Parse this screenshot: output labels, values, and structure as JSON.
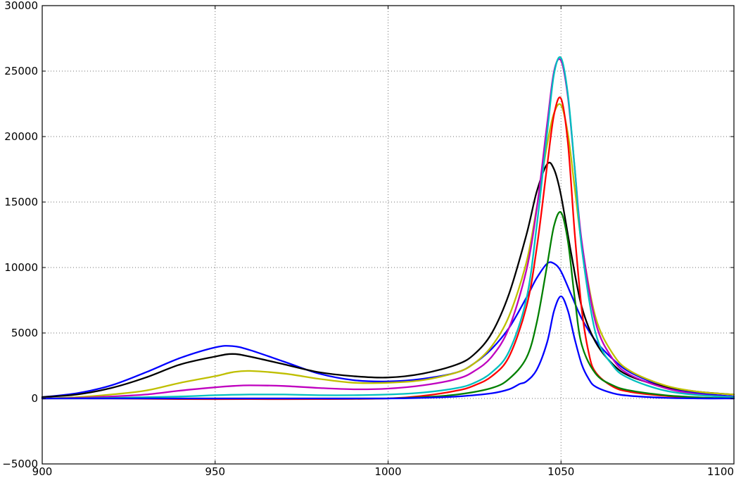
{
  "chart_data": {
    "type": "line",
    "title": "",
    "xlabel": "",
    "ylabel": "",
    "xlim": [
      900,
      1100
    ],
    "ylim": [
      -5000,
      30000
    ],
    "grid": true,
    "legend": "none",
    "x_ticks": [
      "900",
      "950",
      "1000",
      "1050",
      "1100"
    ],
    "y_ticks": [
      "30000",
      "25000",
      "20000",
      "15000",
      "10000",
      "5000",
      "0",
      "−5000"
    ],
    "x_tick_values": [
      900,
      950,
      1000,
      1050,
      1100
    ],
    "y_tick_values": [
      30000,
      25000,
      20000,
      15000,
      10000,
      5000,
      0,
      -5000
    ],
    "series": [
      {
        "color": "#0000ff",
        "x": [
          900,
          910,
          920,
          930,
          940,
          950,
          955,
          960,
          970,
          980,
          990,
          1000,
          1010,
          1020,
          1025,
          1030,
          1035,
          1040,
          1043,
          1046,
          1048,
          1050,
          1053,
          1056,
          1060,
          1065,
          1070,
          1080,
          1090,
          1100
        ],
        "y": [
          100,
          400,
          1000,
          2000,
          3100,
          3900,
          4000,
          3700,
          2800,
          1900,
          1400,
          1300,
          1500,
          2000,
          2700,
          3800,
          5400,
          7700,
          9200,
          10300,
          10300,
          9700,
          7900,
          6100,
          4400,
          3000,
          2000,
          900,
          400,
          150
        ]
      },
      {
        "color": "#000000",
        "x": [
          900,
          910,
          920,
          930,
          940,
          950,
          955,
          960,
          970,
          980,
          990,
          1000,
          1010,
          1020,
          1025,
          1030,
          1035,
          1040,
          1043,
          1046,
          1048,
          1050,
          1053,
          1056,
          1060,
          1065,
          1070,
          1080,
          1090,
          1100
        ],
        "y": [
          100,
          300,
          800,
          1600,
          2600,
          3200,
          3400,
          3200,
          2600,
          2000,
          1700,
          1600,
          1900,
          2600,
          3400,
          5000,
          8000,
          12500,
          15800,
          17900,
          17500,
          15500,
          11000,
          7000,
          4300,
          2600,
          1700,
          900,
          500,
          300
        ]
      },
      {
        "color": "#bfbf00",
        "x": [
          900,
          910,
          920,
          930,
          940,
          950,
          955,
          960,
          970,
          980,
          990,
          1000,
          1010,
          1020,
          1025,
          1030,
          1035,
          1040,
          1043,
          1046,
          1048,
          1050,
          1052,
          1054,
          1056,
          1060,
          1065,
          1070,
          1080,
          1090,
          1100
        ],
        "y": [
          0,
          100,
          300,
          600,
          1200,
          1700,
          2000,
          2100,
          1900,
          1500,
          1200,
          1200,
          1400,
          2000,
          2700,
          4000,
          6300,
          10400,
          14600,
          19400,
          21800,
          22400,
          20200,
          16000,
          11800,
          6200,
          3400,
          2100,
          1000,
          500,
          300
        ]
      },
      {
        "color": "#bf00bf",
        "x": [
          900,
          910,
          920,
          930,
          940,
          950,
          955,
          960,
          970,
          980,
          990,
          1000,
          1010,
          1020,
          1025,
          1030,
          1035,
          1040,
          1043,
          1046,
          1048,
          1050,
          1052,
          1054,
          1056,
          1060,
          1065,
          1070,
          1080,
          1090,
          1100
        ],
        "y": [
          0,
          50,
          150,
          300,
          600,
          850,
          950,
          1000,
          950,
          800,
          700,
          750,
          1000,
          1500,
          2100,
          3200,
          5400,
          9800,
          14500,
          21000,
          25000,
          25800,
          23000,
          17500,
          12000,
          5800,
          3000,
          1800,
          800,
          300,
          100
        ]
      },
      {
        "color": "#00bfbf",
        "x": [
          900,
          920,
          940,
          950,
          960,
          970,
          980,
          990,
          1000,
          1010,
          1020,
          1025,
          1030,
          1035,
          1040,
          1043,
          1046,
          1048,
          1050,
          1052,
          1054,
          1056,
          1060,
          1065,
          1070,
          1080,
          1090,
          1100
        ],
        "y": [
          0,
          50,
          150,
          250,
          300,
          300,
          250,
          250,
          300,
          450,
          800,
          1200,
          2000,
          3600,
          7600,
          13200,
          20300,
          24800,
          26000,
          23200,
          17500,
          11500,
          5000,
          2500,
          1500,
          600,
          250,
          100
        ]
      },
      {
        "color": "#ff0000",
        "x": [
          900,
          920,
          940,
          960,
          980,
          1000,
          1010,
          1020,
          1025,
          1030,
          1035,
          1040,
          1043,
          1046,
          1048,
          1050,
          1052,
          1054,
          1056,
          1058,
          1060,
          1065,
          1070,
          1080,
          1090,
          1100
        ],
        "y": [
          0,
          0,
          -50,
          -50,
          -50,
          0,
          200,
          600,
          1000,
          1700,
          3200,
          7000,
          11500,
          17800,
          21700,
          22900,
          19500,
          12500,
          6800,
          3500,
          2000,
          900,
          500,
          200,
          50,
          0
        ]
      },
      {
        "color": "#008000",
        "x": [
          900,
          920,
          940,
          960,
          980,
          1000,
          1010,
          1020,
          1030,
          1035,
          1040,
          1043,
          1046,
          1048,
          1050,
          1052,
          1054,
          1056,
          1060,
          1065,
          1070,
          1080,
          1090,
          1100
        ],
        "y": [
          0,
          0,
          0,
          0,
          0,
          0,
          100,
          300,
          800,
          1500,
          3100,
          5800,
          10200,
          13200,
          14200,
          12000,
          7600,
          4100,
          1900,
          1000,
          600,
          250,
          80,
          0
        ]
      },
      {
        "color": "#0000ff",
        "x": [
          900,
          920,
          940,
          960,
          980,
          1000,
          1010,
          1020,
          1030,
          1035,
          1038,
          1040,
          1043,
          1046,
          1048,
          1050,
          1052,
          1054,
          1056,
          1058,
          1060,
          1065,
          1070,
          1080,
          1090,
          1100
        ],
        "y": [
          0,
          0,
          0,
          0,
          0,
          0,
          50,
          150,
          400,
          700,
          1100,
          1300,
          2200,
          4300,
          6700,
          7800,
          6700,
          4500,
          2600,
          1500,
          900,
          400,
          200,
          50,
          0,
          0
        ]
      }
    ]
  }
}
